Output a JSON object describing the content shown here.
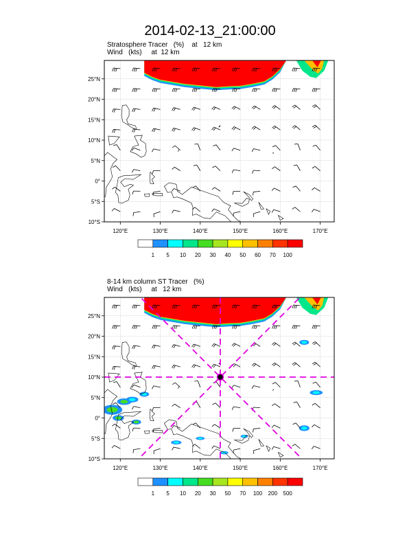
{
  "title": "2014-02-13_21:00:00",
  "panels": [
    {
      "id": "top",
      "label1": "Stratosphere Tracer   (%)    at   12 km",
      "label2": "Wind   (kts)     at  12 km",
      "lat_labels": [
        "25°N",
        "20°N",
        "15°N",
        "10°N",
        "5°N",
        "0°",
        "5°S",
        "10°S"
      ],
      "lon_labels": [
        "120°E",
        "130°E",
        "140°E",
        "150°E",
        "160°E",
        "170°E"
      ],
      "colorbar_labels": [
        "1",
        "5",
        "10",
        "20",
        "30",
        "40",
        "50",
        "60",
        "70",
        "100"
      ],
      "colorbar_colors": [
        "#ffffff",
        "#1e90ff",
        "#00ffff",
        "#00e68a",
        "#44dd22",
        "#a6e620",
        "#ffff00",
        "#ffc000",
        "#ff8000",
        "#ff3300",
        "#ff0000"
      ]
    },
    {
      "id": "bottom",
      "label1": "8-14 km column ST Tracer   (%)",
      "label2": "Wind   (kts)     at   12 km",
      "lat_labels": [
        "25°N",
        "20°N",
        "15°N",
        "10°N",
        "5°N",
        "0°",
        "5°S",
        "10°S"
      ],
      "lon_labels": [
        "120°E",
        "130°E",
        "140°E",
        "150°E",
        "160°E",
        "170°E"
      ],
      "colorbar_labels": [
        "1",
        "5",
        "10",
        "20",
        "30",
        "50",
        "70",
        "100",
        "200",
        "500"
      ],
      "colorbar_colors": [
        "#ffffff",
        "#1e90ff",
        "#00ffff",
        "#00e68a",
        "#44dd22",
        "#a6e620",
        "#ffff00",
        "#ffc000",
        "#ff8000",
        "#ff3300",
        "#ff0000"
      ]
    }
  ],
  "map_extent": {
    "lon_min": 116,
    "lon_max": 173.5,
    "lat_min": -10,
    "lat_max": 29.5
  },
  "marker": {
    "lon": 145,
    "lat": 10,
    "color": "#e000e0"
  }
}
